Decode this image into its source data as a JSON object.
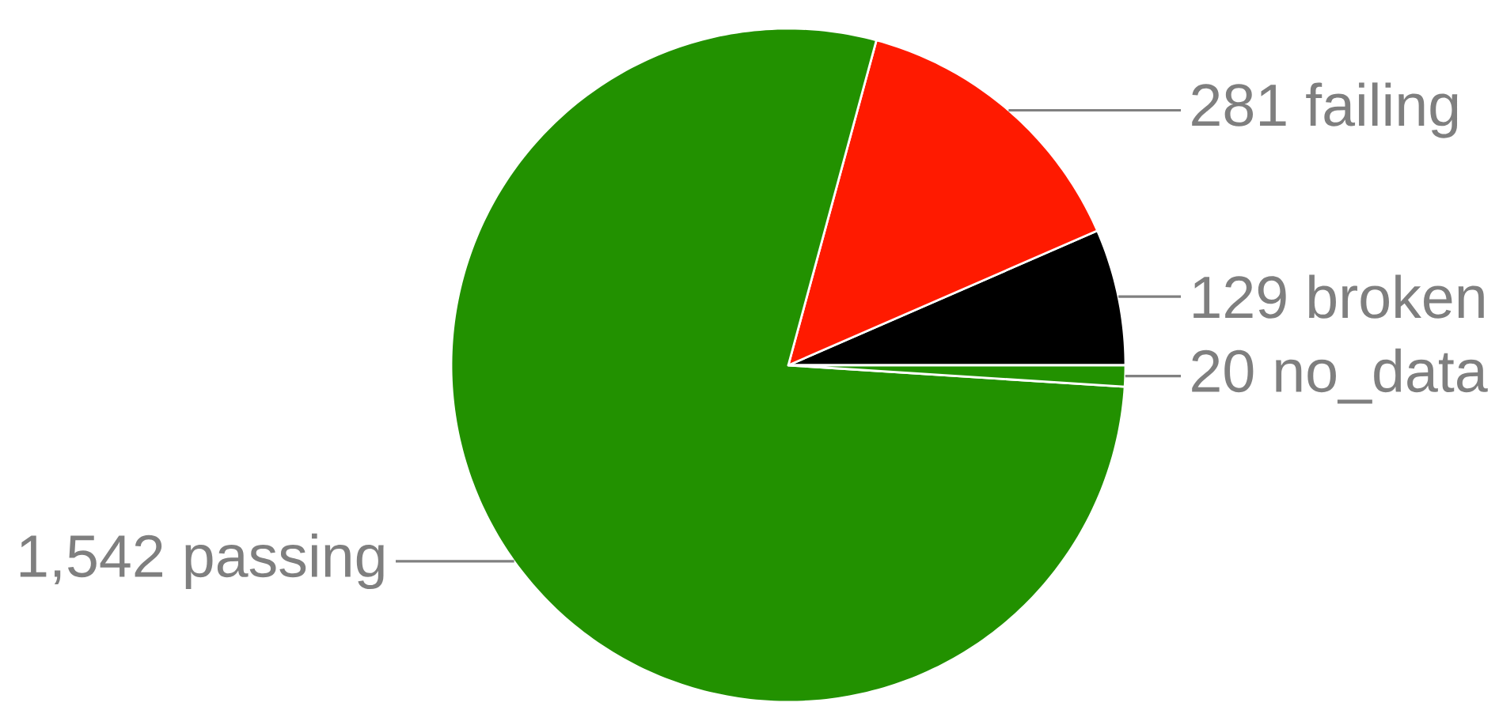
{
  "chart_data": {
    "type": "pie",
    "categories": [
      "broken",
      "failing",
      "passing",
      "no_data"
    ],
    "values": [
      129,
      281,
      1542,
      20
    ],
    "value_labels": [
      "129",
      "281",
      "1,542",
      "20"
    ],
    "colors": [
      "#000000",
      "#ff1a00",
      "#229100",
      "#229100"
    ]
  }
}
